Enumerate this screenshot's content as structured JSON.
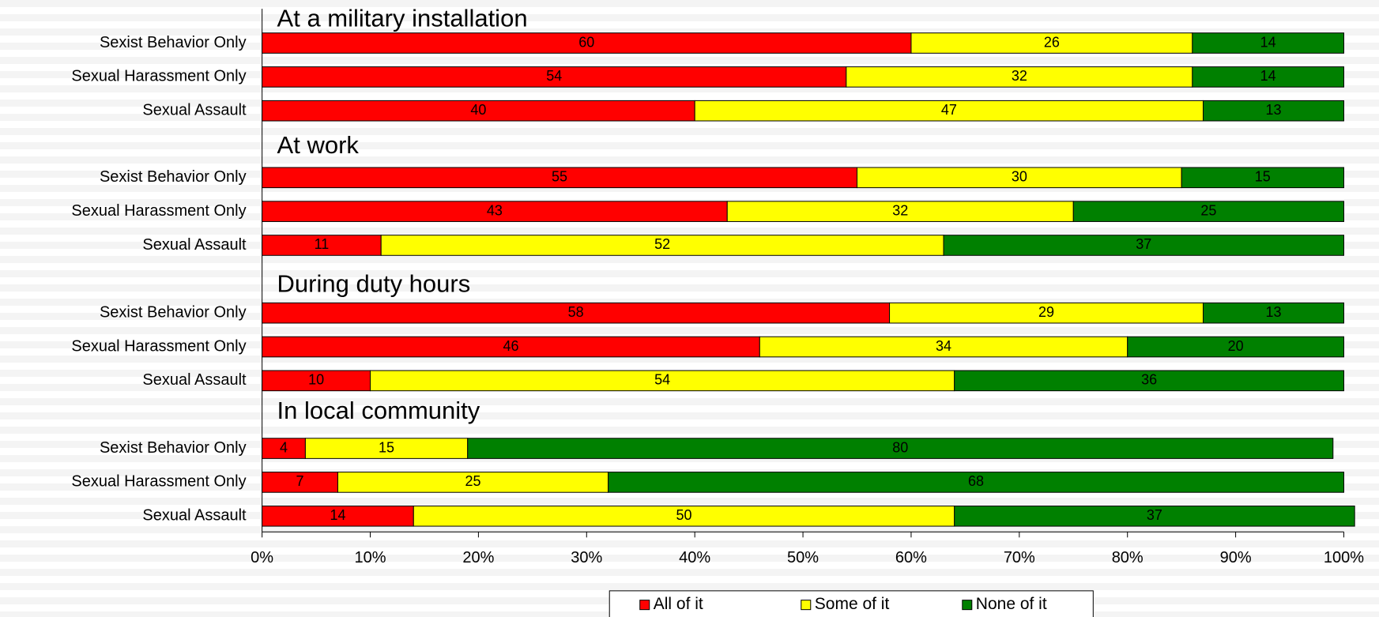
{
  "chart_data": {
    "type": "bar",
    "orientation": "horizontal",
    "stacked": true,
    "series": [
      {
        "name": "All of it",
        "color": "#ff0000"
      },
      {
        "name": "Some of it",
        "color": "#ffff00"
      },
      {
        "name": "None of it",
        "color": "#008000"
      }
    ],
    "groups": [
      {
        "title": "At a military installation",
        "categories": [
          "Sexist Behavior Only",
          "Sexual Harassment Only",
          "Sexual Assault"
        ],
        "values": [
          [
            60,
            26,
            14
          ],
          [
            54,
            32,
            14
          ],
          [
            40,
            47,
            13
          ]
        ]
      },
      {
        "title": "At work",
        "categories": [
          "Sexist Behavior Only",
          "Sexual Harassment Only",
          "Sexual Assault"
        ],
        "values": [
          [
            55,
            30,
            15
          ],
          [
            43,
            32,
            25
          ],
          [
            11,
            52,
            37
          ]
        ]
      },
      {
        "title": "During duty hours",
        "categories": [
          "Sexist Behavior Only",
          "Sexual Harassment Only",
          "Sexual Assault"
        ],
        "values": [
          [
            58,
            29,
            13
          ],
          [
            46,
            34,
            20
          ],
          [
            10,
            54,
            36
          ]
        ]
      },
      {
        "title": "In local community",
        "categories": [
          "Sexist Behavior Only",
          "Sexual Harassment Only",
          "Sexual Assault"
        ],
        "values": [
          [
            4,
            15,
            80
          ],
          [
            7,
            25,
            68
          ],
          [
            14,
            50,
            37
          ]
        ]
      }
    ],
    "xlim": [
      0,
      100
    ],
    "xticks": [
      {
        "value": 0,
        "label": "0%"
      },
      {
        "value": 10,
        "label": "10%"
      },
      {
        "value": 20,
        "label": "20%"
      },
      {
        "value": 30,
        "label": "30%"
      },
      {
        "value": 40,
        "label": "40%"
      },
      {
        "value": 50,
        "label": "50%"
      },
      {
        "value": 60,
        "label": "60%"
      },
      {
        "value": 70,
        "label": "70%"
      },
      {
        "value": 80,
        "label": "80%"
      },
      {
        "value": 90,
        "label": "90%"
      },
      {
        "value": 100,
        "label": "100%"
      }
    ],
    "legend": "bottom"
  }
}
